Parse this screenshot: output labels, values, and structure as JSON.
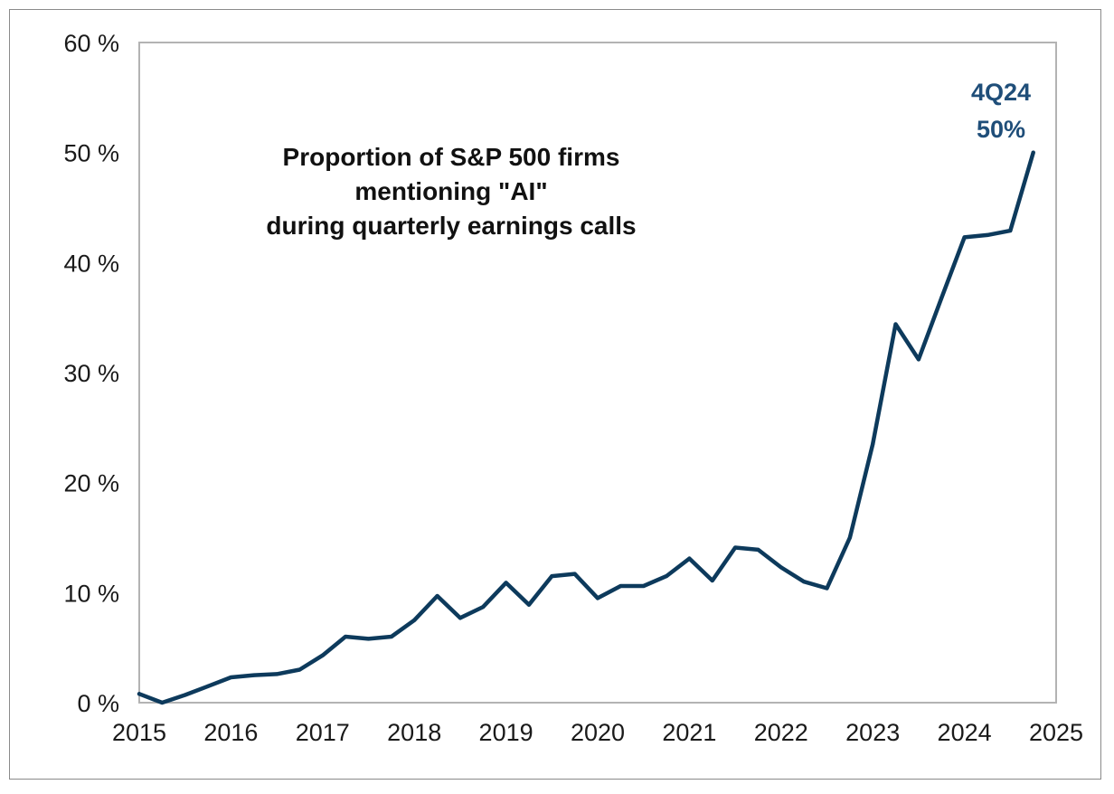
{
  "chart_data": {
    "type": "line",
    "title_lines": [
      "Proportion of S&P 500 firms",
      "mentioning \"AI\"",
      "during quarterly earnings calls"
    ],
    "xlabel": "",
    "ylabel": "",
    "ylim": [
      0,
      60
    ],
    "xlim": [
      2015,
      2025
    ],
    "y_ticks": [
      0,
      10,
      20,
      30,
      40,
      50,
      60
    ],
    "y_tick_labels": [
      "0 %",
      "10 %",
      "20 %",
      "30 %",
      "40 %",
      "50 %",
      "60 %"
    ],
    "x_ticks": [
      2015,
      2016,
      2017,
      2018,
      2019,
      2020,
      2021,
      2022,
      2023,
      2024,
      2025
    ],
    "x_tick_labels": [
      "2015",
      "2016",
      "2017",
      "2018",
      "2019",
      "2020",
      "2021",
      "2022",
      "2023",
      "2024",
      "2025"
    ],
    "grid": false,
    "line_color": "#0d3a5c",
    "annotation": {
      "lines": [
        "4Q24",
        "50%"
      ],
      "color": "#1f4e79"
    },
    "series": [
      {
        "values": [
          [
            2015.0,
            0.8
          ],
          [
            2015.25,
            0.0
          ],
          [
            2015.5,
            0.7
          ],
          [
            2015.75,
            1.5
          ],
          [
            2016.0,
            2.3
          ],
          [
            2016.25,
            2.5
          ],
          [
            2016.5,
            2.6
          ],
          [
            2016.75,
            3.0
          ],
          [
            2017.0,
            4.3
          ],
          [
            2017.25,
            6.0
          ],
          [
            2017.5,
            5.8
          ],
          [
            2017.75,
            6.0
          ],
          [
            2018.0,
            7.5
          ],
          [
            2018.25,
            9.7
          ],
          [
            2018.5,
            7.7
          ],
          [
            2018.75,
            8.7
          ],
          [
            2019.0,
            10.9
          ],
          [
            2019.25,
            8.9
          ],
          [
            2019.5,
            11.5
          ],
          [
            2019.75,
            11.7
          ],
          [
            2020.0,
            9.5
          ],
          [
            2020.25,
            10.6
          ],
          [
            2020.5,
            10.6
          ],
          [
            2020.75,
            11.5
          ],
          [
            2021.0,
            13.1
          ],
          [
            2021.25,
            11.1
          ],
          [
            2021.5,
            14.1
          ],
          [
            2021.75,
            13.9
          ],
          [
            2022.0,
            12.3
          ],
          [
            2022.25,
            11.0
          ],
          [
            2022.5,
            10.4
          ],
          [
            2022.75,
            15.0
          ],
          [
            2023.0,
            23.5
          ],
          [
            2023.25,
            34.4
          ],
          [
            2023.5,
            31.2
          ],
          [
            2023.75,
            36.8
          ],
          [
            2024.0,
            42.3
          ],
          [
            2024.25,
            42.5
          ],
          [
            2024.5,
            42.9
          ],
          [
            2024.75,
            50.0
          ]
        ]
      }
    ]
  }
}
